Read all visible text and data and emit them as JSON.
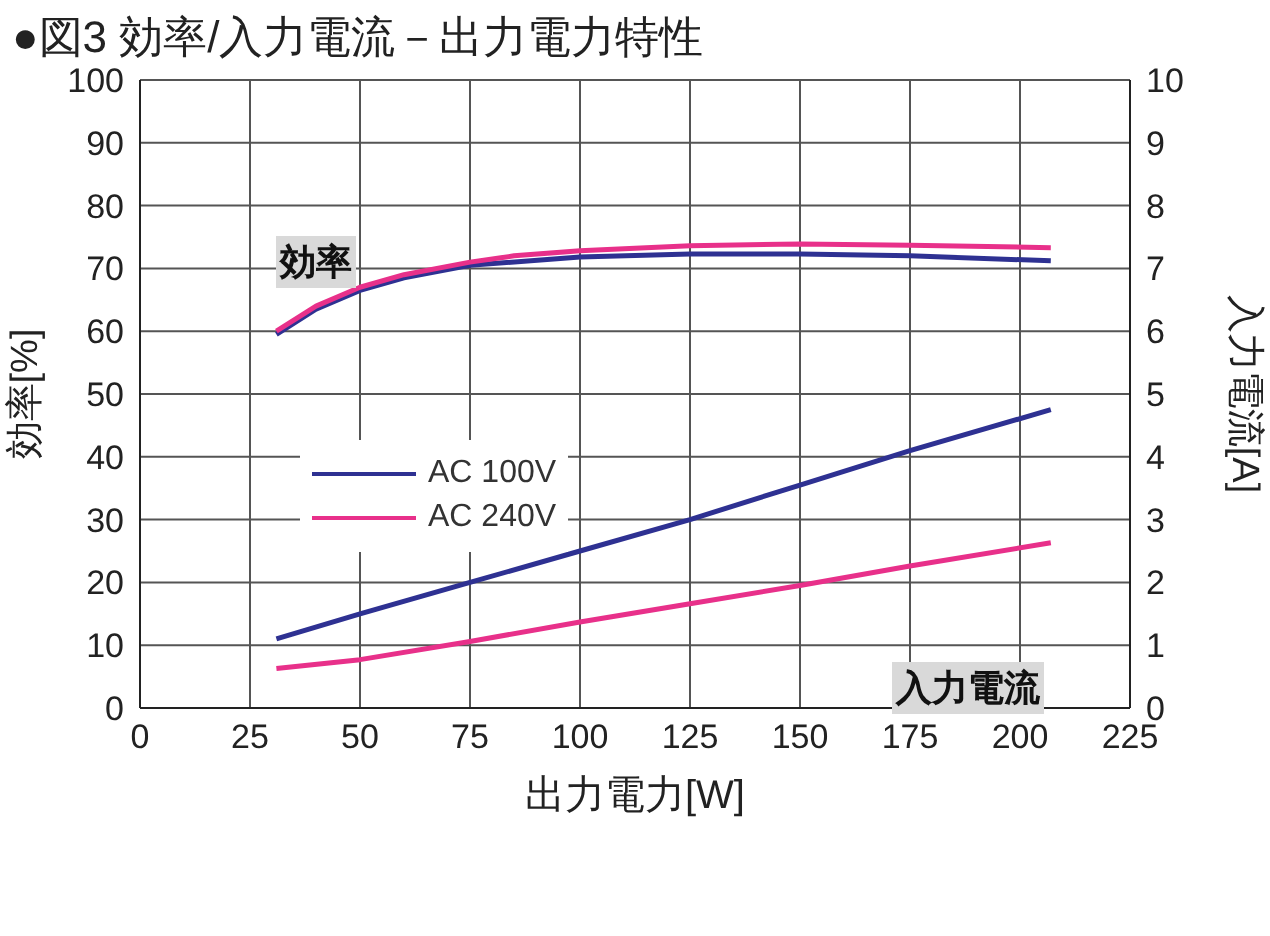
{
  "chart_data": {
    "type": "line",
    "title": "●図3 効率/入力電流－出力電力特性",
    "xlabel": "出力電力[W]",
    "ylabel": "効率[%]",
    "y2label": "入力電流[A]",
    "annotations": [
      "効率",
      "入力電流"
    ],
    "series": [
      {
        "name": "AC 100V",
        "color": "#2e3192",
        "x": [
          31,
          40,
          50,
          60,
          75,
          100,
          125,
          150,
          175,
          207
        ],
        "values": [
          59.5,
          63.5,
          66.5,
          68.5,
          70.5,
          71.8,
          72.3,
          72.3,
          72,
          71.2
        ]
      },
      {
        "name": "AC 240V",
        "color": "#e8308a",
        "x": [
          31,
          40,
          50,
          60,
          75,
          85,
          100,
          125,
          150,
          175,
          207
        ],
        "values": [
          60,
          64,
          67,
          69,
          71,
          72,
          72.8,
          73.6,
          73.9,
          73.7,
          73.3
        ]
      },
      {
        "color": "#2e3192",
        "axis": "y2",
        "x": [
          31,
          50,
          75,
          100,
          125,
          150,
          175,
          207
        ],
        "values": [
          1.1,
          1.5,
          2,
          2.5,
          3,
          3.55,
          4.1,
          4.75
        ]
      },
      {
        "color": "#e8308a",
        "axis": "y2",
        "x": [
          31,
          50,
          75,
          100,
          125,
          150,
          175,
          207
        ],
        "values": [
          0.63,
          0.77,
          1.06,
          1.37,
          1.66,
          1.95,
          2.26,
          2.63
        ]
      }
    ],
    "xlim": [
      0,
      225
    ],
    "xticks": [
      0,
      25,
      50,
      75,
      100,
      125,
      150,
      175,
      200,
      225
    ],
    "ylim": [
      0,
      100
    ],
    "yticks": [
      0,
      10,
      20,
      30,
      40,
      50,
      60,
      70,
      80,
      90,
      100
    ],
    "y2lim": [
      0,
      10
    ],
    "y2ticks": [
      0,
      1,
      2,
      3,
      4,
      5,
      6,
      7,
      8,
      9,
      10
    ],
    "grid": true,
    "legend": "left",
    "marker": "none",
    "line_style": "solid"
  }
}
